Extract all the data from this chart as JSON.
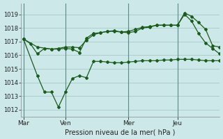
{
  "background_color": "#cce8e8",
  "grid_color": "#aacfcf",
  "line_color": "#1a5c1a",
  "xlabel": "Pression niveau de la mer( hPa )",
  "ylim": [
    1011.5,
    1019.8
  ],
  "yticks": [
    1012,
    1013,
    1014,
    1015,
    1016,
    1017,
    1018,
    1019
  ],
  "day_labels": [
    "Mar",
    "Ven",
    "Mer",
    "Jeu"
  ],
  "day_positions": [
    0,
    9,
    22.5,
    33
  ],
  "vline_positions": [
    0,
    9,
    22.5,
    33
  ],
  "xlim": [
    -0.5,
    42
  ],
  "line1_x": [
    0,
    1.5,
    3,
    4.5,
    6,
    7.5,
    9,
    10.5,
    12,
    13.5,
    15,
    16.5,
    18,
    19.5,
    21,
    22.5,
    24,
    25.5,
    27,
    28.5,
    30,
    31.5,
    33,
    34.5,
    36,
    37.5,
    39,
    40.5,
    42
  ],
  "line1_y": [
    1017.2,
    1016.85,
    1016.1,
    1016.5,
    1016.45,
    1016.5,
    1016.6,
    1016.6,
    1016.55,
    1017.1,
    1017.5,
    1017.65,
    1017.75,
    1017.8,
    1017.7,
    1017.75,
    1017.9,
    1018.05,
    1018.1,
    1018.2,
    1018.2,
    1018.2,
    1018.2,
    1019.1,
    1018.85,
    1018.4,
    1017.9,
    1016.7,
    1016.6
  ],
  "line2_x": [
    0,
    3,
    6,
    7.5,
    9,
    10.5,
    12,
    13.5,
    15,
    16.5,
    18,
    19.5,
    21,
    22.5,
    24,
    25.5,
    27,
    28.5,
    30,
    31.5,
    33,
    34.5,
    36,
    37.5,
    39,
    40.5,
    42
  ],
  "line2_y": [
    1017.2,
    1016.6,
    1016.45,
    1016.45,
    1016.5,
    1016.45,
    1016.2,
    1017.25,
    1017.6,
    1017.65,
    1017.75,
    1017.75,
    1017.7,
    1017.65,
    1017.75,
    1018.0,
    1018.05,
    1018.2,
    1018.2,
    1018.2,
    1018.2,
    1019.0,
    1018.5,
    1017.6,
    1016.9,
    1016.5,
    1016.1
  ],
  "line3_x": [
    0,
    3,
    4.5,
    6,
    7.5,
    9,
    10.5,
    12,
    13.5,
    15,
    16.5,
    18,
    19.5,
    21,
    22.5,
    24,
    25.5,
    27,
    28.5,
    30,
    31.5,
    33,
    34.5,
    36,
    37.5,
    39,
    40.5,
    42
  ],
  "line3_y": [
    1017.2,
    1014.5,
    1013.3,
    1013.3,
    1012.2,
    1013.3,
    1014.3,
    1014.5,
    1014.35,
    1015.55,
    1015.55,
    1015.5,
    1015.45,
    1015.45,
    1015.5,
    1015.55,
    1015.6,
    1015.6,
    1015.6,
    1015.65,
    1015.65,
    1015.7,
    1015.7,
    1015.7,
    1015.65,
    1015.6,
    1015.6,
    1015.6
  ]
}
